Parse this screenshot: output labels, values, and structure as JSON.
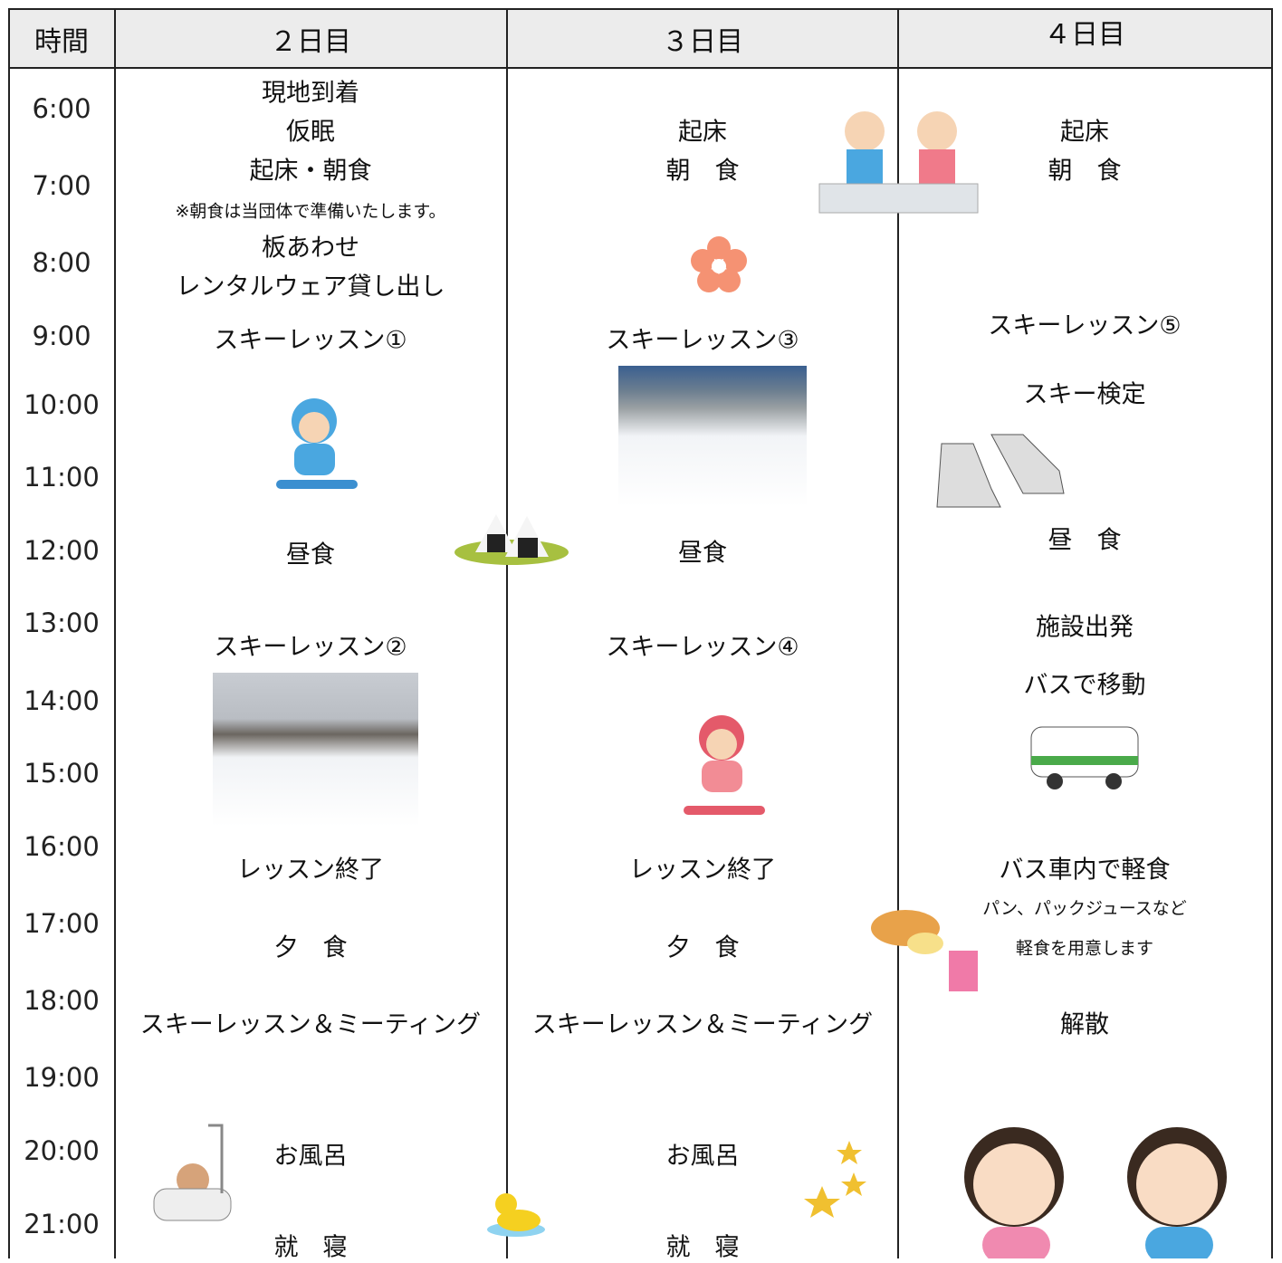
{
  "header": [
    "時間",
    "２日目",
    "３日目",
    "４日目"
  ],
  "times": [
    "6:00",
    "7:00",
    "8:00",
    "9:00",
    "10:00",
    "11:00",
    "12:00",
    "13:00",
    "14:00",
    "15:00",
    "16:00",
    "17:00",
    "18:00",
    "19:00",
    "20:00",
    "21:00"
  ],
  "days": [
    [
      "現地到着",
      "仮眠",
      "起床・朝食",
      "※朝食は当団体で準備いたします。",
      "板あわせ",
      "レンタルウェア貸し出し",
      "スキーレッスン①",
      "昼食",
      "スキーレッスン②",
      "レッスン終了",
      "夕　食",
      "スキーレッスン＆ミーティング",
      "お風呂",
      "就　寝"
    ],
    [
      "起床",
      "朝　食",
      "スキーレッスン③",
      "昼食",
      "スキーレッスン④",
      "レッスン終了",
      "夕　食",
      "スキーレッスン＆ミーティング",
      "お風呂",
      "就　寝"
    ],
    [
      "起床",
      "朝　食",
      "スキーレッスン⑤",
      "スキー検定",
      "昼　食",
      "施設出発",
      "バスで移動",
      "バス車内で軽食",
      "パン、パックジュースなど",
      "軽食を用意します",
      "解散"
    ]
  ]
}
